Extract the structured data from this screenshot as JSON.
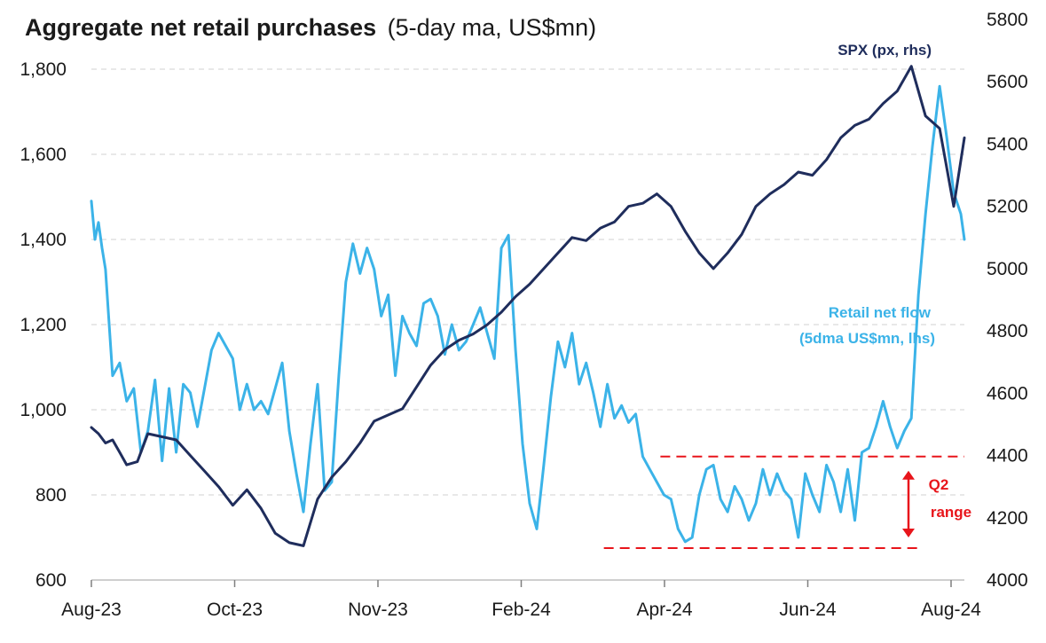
{
  "chart_data": {
    "type": "line",
    "title": "Aggregate net retail purchases",
    "subtitle": "(5-day ma, US$mn)",
    "x_labels": [
      "Aug-23",
      "Oct-23",
      "Nov-23",
      "Feb-24",
      "Apr-24",
      "Jun-24",
      "Aug-24"
    ],
    "y_left": {
      "min": 600,
      "max": 1800,
      "ticks": [
        600,
        800,
        1000,
        1200,
        1400,
        1600,
        1800
      ],
      "tick_labels": [
        "600",
        "800",
        "1,000",
        "1,200",
        "1,400",
        "1,600",
        "1,800"
      ]
    },
    "y_right": {
      "min": 4000,
      "max": 5800,
      "ticks": [
        4000,
        4200,
        4400,
        4600,
        4800,
        5000,
        5200,
        5400,
        5600,
        5800
      ],
      "tick_labels": [
        "4000",
        "4200",
        "4400",
        "4600",
        "4800",
        "5000",
        "5200",
        "5400",
        "5600",
        "5800"
      ]
    },
    "series": [
      {
        "name": "SPX (px, rhs)",
        "axis": "right",
        "color": "#1f2d5c",
        "x": [
          0,
          2,
          4,
          6,
          8,
          10,
          13,
          16,
          20,
          24,
          28,
          32,
          36,
          40,
          44,
          48,
          52,
          56,
          60,
          64,
          68,
          72,
          76,
          80,
          84,
          88,
          92,
          96,
          100,
          104,
          108,
          112,
          116,
          120,
          124,
          128,
          132,
          136,
          140,
          144,
          148,
          152,
          156,
          160,
          164,
          168,
          172,
          176,
          180,
          184,
          188,
          192,
          196,
          200,
          204,
          208,
          212,
          216,
          220,
          224,
          228,
          232,
          236,
          240,
          244,
          247
        ],
        "values": [
          4490,
          4470,
          4440,
          4450,
          4410,
          4370,
          4380,
          4470,
          4460,
          4450,
          4400,
          4350,
          4300,
          4240,
          4290,
          4230,
          4150,
          4120,
          4110,
          4260,
          4330,
          4380,
          4440,
          4510,
          4530,
          4550,
          4620,
          4690,
          4740,
          4770,
          4790,
          4820,
          4860,
          4910,
          4950,
          5000,
          5050,
          5100,
          5090,
          5130,
          5150,
          5200,
          5210,
          5240,
          5200,
          5120,
          5050,
          5000,
          5050,
          5110,
          5200,
          5240,
          5270,
          5310,
          5300,
          5350,
          5420,
          5460,
          5480,
          5530,
          5570,
          5650,
          5490,
          5450,
          5200,
          5420
        ]
      },
      {
        "name": "Retail net flow (5dma US$mn, lhs)",
        "axis": "left",
        "color": "#3bb3e8",
        "x": [
          0,
          1,
          2,
          3,
          4,
          6,
          8,
          10,
          12,
          14,
          16,
          18,
          20,
          22,
          24,
          26,
          28,
          30,
          32,
          34,
          36,
          38,
          40,
          42,
          44,
          46,
          48,
          50,
          52,
          54,
          56,
          58,
          60,
          62,
          64,
          66,
          68,
          70,
          72,
          74,
          76,
          78,
          80,
          82,
          84,
          86,
          88,
          90,
          92,
          94,
          96,
          98,
          100,
          102,
          104,
          106,
          108,
          110,
          112,
          114,
          116,
          118,
          120,
          122,
          124,
          126,
          128,
          130,
          132,
          134,
          136,
          138,
          140,
          142,
          144,
          146,
          148,
          150,
          152,
          154,
          156,
          158,
          160,
          162,
          164,
          166,
          168,
          170,
          172,
          174,
          176,
          178,
          180,
          182,
          184,
          186,
          188,
          190,
          192,
          194,
          196,
          198,
          200,
          202,
          204,
          206,
          208,
          210,
          212,
          214,
          216,
          218,
          220,
          222,
          224,
          226,
          228,
          230,
          232,
          234,
          236,
          238,
          240,
          242,
          244,
          246,
          247
        ],
        "values": [
          1490,
          1400,
          1440,
          1380,
          1330,
          1080,
          1110,
          1020,
          1050,
          900,
          950,
          1070,
          880,
          1050,
          900,
          1060,
          1040,
          960,
          1050,
          1140,
          1180,
          1150,
          1120,
          1000,
          1060,
          1000,
          1020,
          990,
          1050,
          1110,
          950,
          850,
          760,
          920,
          1060,
          810,
          830,
          1080,
          1300,
          1390,
          1320,
          1380,
          1330,
          1220,
          1270,
          1080,
          1220,
          1180,
          1150,
          1250,
          1260,
          1220,
          1130,
          1200,
          1140,
          1160,
          1200,
          1240,
          1180,
          1120,
          1380,
          1410,
          1140,
          920,
          780,
          720,
          870,
          1030,
          1160,
          1100,
          1180,
          1060,
          1110,
          1040,
          960,
          1060,
          980,
          1010,
          970,
          990,
          890,
          860,
          830,
          800,
          790,
          720,
          690,
          700,
          800,
          860,
          870,
          790,
          760,
          820,
          790,
          740,
          780,
          860,
          800,
          850,
          810,
          790,
          700,
          850,
          800,
          760,
          870,
          830,
          760,
          860,
          740,
          900,
          910,
          960,
          1020,
          960,
          910,
          950,
          980,
          1270,
          1460,
          1620,
          1760,
          1640,
          1510,
          1460,
          1400
        ]
      }
    ],
    "annotations": {
      "spx_label": "SPX (px, rhs)",
      "flow_label_line1": "Retail net flow",
      "flow_label_line2": "(5dma US$mn, lhs)",
      "range_label_line1": "Q2",
      "range_label_line2": "range",
      "range_high": 890,
      "range_low": 675,
      "range_x_start": 161,
      "range_x_end": 234
    },
    "colors": {
      "spx": "#1f2d5c",
      "flow": "#3bb3e8",
      "range": "#e8151b",
      "grid": "#d9d9d9"
    }
  }
}
